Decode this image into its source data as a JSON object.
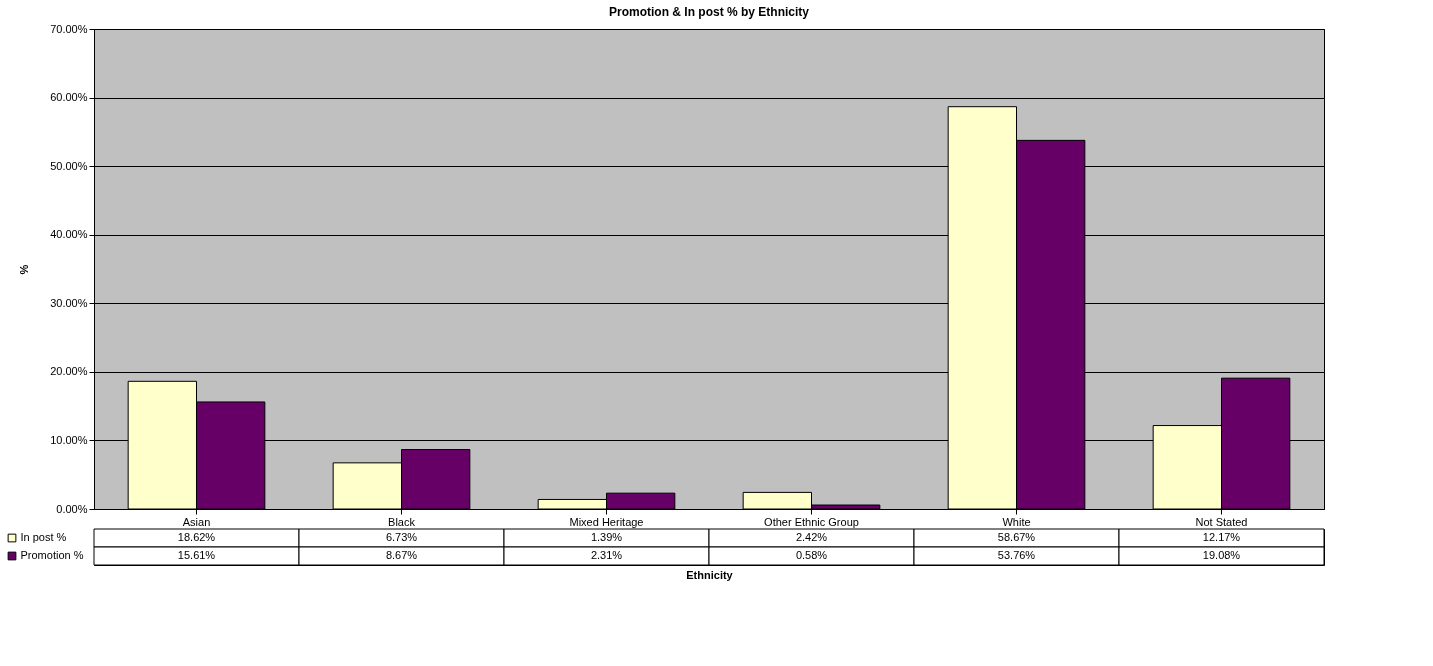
{
  "chart_data": {
    "type": "bar",
    "title": "Promotion & In post % by Ethnicity",
    "xlabel": "Ethnicity",
    "ylabel": "%",
    "categories": [
      "Asian",
      "Black",
      "Mixed Heritage",
      "Other Ethnic Group",
      "White",
      "Not Stated"
    ],
    "series": [
      {
        "name": "In post %",
        "color": "#ffffcc",
        "values": [
          18.62,
          6.73,
          1.39,
          2.42,
          58.67,
          12.17
        ],
        "value_labels": [
          "18.62%",
          "6.73%",
          "1.39%",
          "2.42%",
          "58.67%",
          "12.17%"
        ]
      },
      {
        "name": "Promotion %",
        "color": "#660066",
        "values": [
          15.61,
          8.67,
          2.31,
          0.58,
          53.76,
          19.08
        ],
        "value_labels": [
          "15.61%",
          "8.67%",
          "2.31%",
          "0.58%",
          "53.76%",
          "19.08%"
        ]
      }
    ],
    "ylim": [
      0,
      70
    ],
    "yticks": [
      {
        "value": 0,
        "label": "0.00%"
      },
      {
        "value": 10,
        "label": "10.00%"
      },
      {
        "value": 20,
        "label": "20.00%"
      },
      {
        "value": 30,
        "label": "30.00%"
      },
      {
        "value": 40,
        "label": "40.00%"
      },
      {
        "value": 50,
        "label": "50.00%"
      },
      {
        "value": 60,
        "label": "60.00%"
      },
      {
        "value": 70,
        "label": "70.00%"
      }
    ],
    "grid": "y",
    "legend": "bottom left"
  }
}
